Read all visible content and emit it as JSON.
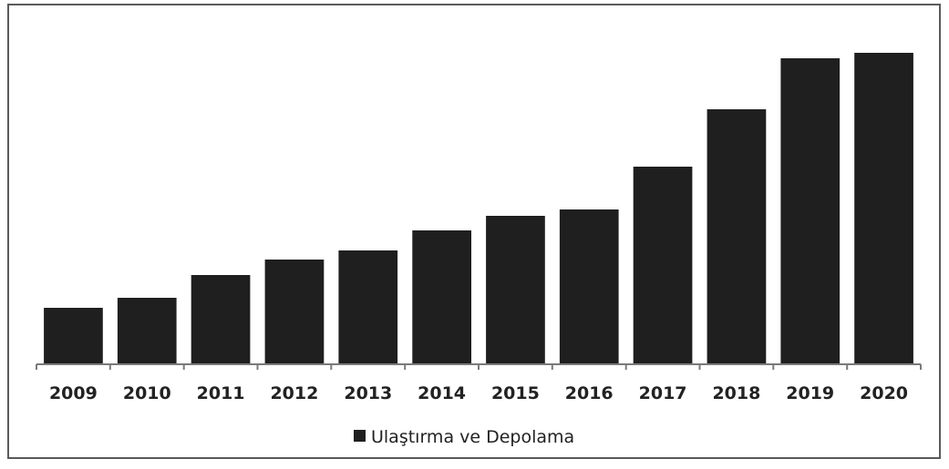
{
  "chart_data": {
    "type": "bar",
    "categories": [
      "2009",
      "2010",
      "2011",
      "2012",
      "2013",
      "2014",
      "2015",
      "2016",
      "2017",
      "2018",
      "2019",
      "2020"
    ],
    "series": [
      {
        "name": "Ulaştırma ve Depolama",
        "color": "#1f1f1f",
        "values": [
          62,
          73,
          98,
          115,
          125,
          147,
          163,
          170,
          217,
          280,
          336,
          342
        ]
      }
    ],
    "title": "",
    "xlabel": "",
    "ylabel": "",
    "ylim": [
      0,
      350
    ],
    "grid": false,
    "legend_position": "bottom"
  }
}
